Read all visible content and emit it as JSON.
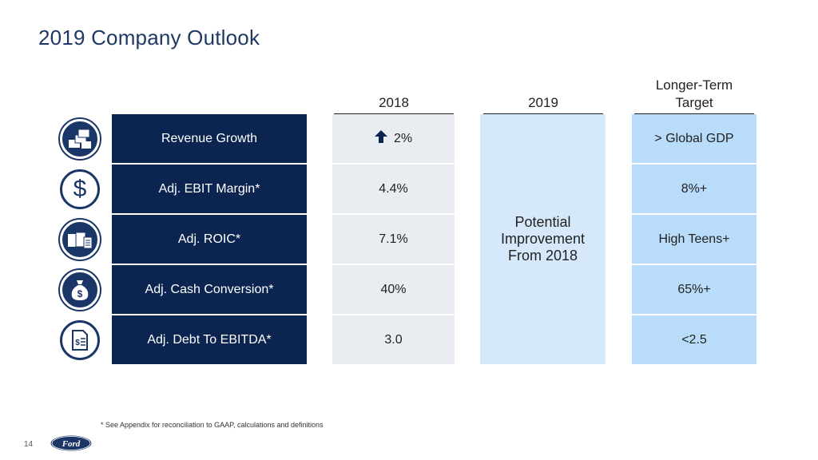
{
  "title": "2019 Company Outlook",
  "columns": {
    "c2018": "2018",
    "c2019": "2019",
    "target_line1": "Longer-Term",
    "target_line2": "Target"
  },
  "rows": [
    {
      "metric": "Revenue Growth",
      "v2018": "2%",
      "target": "> Global GDP",
      "icon": "money-stacks-icon",
      "arrow": "up-arrow-icon"
    },
    {
      "metric": "Adj. EBIT Margin*",
      "v2018": "4.4%",
      "target": "8%+",
      "icon": "dollar-sign-icon"
    },
    {
      "metric": "Adj. ROIC*",
      "v2018": "7.1%",
      "target": "High Teens+",
      "icon": "investment-icon"
    },
    {
      "metric": "Adj. Cash Conversion*",
      "v2018": "40%",
      "target": "65%+",
      "icon": "money-bag-icon"
    },
    {
      "metric": "Adj. Debt To EBITDA*",
      "v2018": "3.0",
      "target": "<2.5",
      "icon": "financial-document-icon"
    }
  ],
  "outlook_2019": {
    "line1": "Potential",
    "line2": "Improvement",
    "line3": "From 2018"
  },
  "footnote": "* See Appendix for reconciliation to GAAP, calculations and definitions",
  "page_number": "14",
  "logo_text": "Ford",
  "colors": {
    "navy": "#0b2550",
    "light_gray": "#e9edf1",
    "light_blue": "#d6e9fb",
    "target_blue": "#b8dcfa",
    "title": "#1f3864"
  }
}
